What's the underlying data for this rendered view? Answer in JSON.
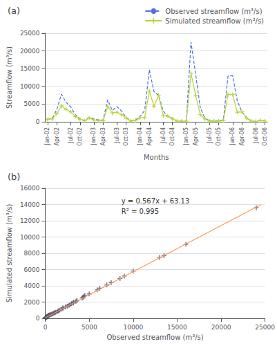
{
  "chart_data": [
    {
      "type": "line",
      "title": "(a)",
      "x_label": "Months",
      "y_label": "Streamflow (m³/s)",
      "categories": [
        "Jan-02",
        null,
        "Apr-02",
        null,
        null,
        "Jul-02",
        null,
        "Oct-02",
        null,
        null,
        "Jan-03",
        null,
        "Apr-03",
        null,
        null,
        "Jul-03",
        null,
        "Oct-03",
        null,
        null,
        "Jan-04",
        null,
        "Apr-04",
        null,
        null,
        "Jul-04",
        null,
        "Oct-04",
        null,
        null,
        "Jan-05",
        null,
        "Apr-05",
        null,
        null,
        "Jul-05",
        null,
        "Oct-05",
        null,
        null,
        "Jan-06",
        null,
        "Apr-06",
        null,
        null,
        "Jul-06",
        null,
        "Oct-06"
      ],
      "series": [
        {
          "name": "Observed streamflow (m³/s)",
          "line_style": "dashed",
          "values": [
            700,
            900,
            3500,
            7800,
            5500,
            4200,
            2000,
            800,
            400,
            1200,
            800,
            500,
            500,
            6200,
            3200,
            4300,
            3000,
            1200,
            300,
            500,
            1500,
            3200,
            14700,
            8500,
            7500,
            3000,
            1500,
            1000,
            200,
            200,
            200,
            22500,
            13500,
            4000,
            1000,
            300,
            200,
            300,
            600,
            12900,
            13000,
            5900,
            2800,
            1200,
            250,
            100,
            450,
            300
          ]
        },
        {
          "name": "Simulated streamflow (m³/s)",
          "line_style": "solid",
          "marker": "+",
          "values": [
            700,
            800,
            2300,
            4500,
            3500,
            2800,
            1500,
            700,
            300,
            1100,
            500,
            300,
            300,
            4300,
            2500,
            2700,
            2000,
            1000,
            200,
            400,
            1100,
            1200,
            8700,
            4400,
            7500,
            1700,
            1600,
            800,
            200,
            200,
            200,
            13700,
            7500,
            2000,
            800,
            200,
            200,
            200,
            400,
            7700,
            7700,
            2700,
            2800,
            1000,
            200,
            100,
            400,
            200
          ]
        }
      ],
      "ylim": [
        0,
        25000
      ],
      "yticks": [
        0,
        5000,
        10000,
        15000,
        20000,
        25000
      ],
      "grid": true,
      "legend": "upper right"
    },
    {
      "type": "scatter",
      "title": "(b)",
      "x_label": "Observed streamflow (m³/s)",
      "y_label": "Simulated streamflow (m³/s)",
      "series": [
        {
          "type": "scatter",
          "marker": "+",
          "x": [
            10,
            30,
            50,
            80,
            100,
            120,
            150,
            180,
            200,
            250,
            300,
            350,
            400,
            450,
            500,
            600,
            700,
            800,
            900,
            1000,
            1100,
            1200,
            1400,
            1500,
            1600,
            1800,
            2000,
            2000,
            2300,
            2500,
            2700,
            2800,
            3000,
            3200,
            3200,
            3500,
            3600,
            4200,
            4300,
            4400,
            4500,
            5000,
            5900,
            6200,
            7000,
            7500,
            8500,
            9000,
            10000,
            13000,
            13500,
            16000,
            24000
          ],
          "values": [
            50,
            60,
            80,
            100,
            120,
            140,
            160,
            180,
            200,
            250,
            300,
            350,
            380,
            400,
            420,
            450,
            500,
            560,
            600,
            650,
            700,
            750,
            850,
            920,
            970,
            1100,
            1200,
            1300,
            1400,
            1500,
            1600,
            1700,
            1800,
            1900,
            2000,
            2100,
            2200,
            2500,
            2600,
            2700,
            2800,
            3000,
            3500,
            3700,
            4100,
            4400,
            4900,
            5200,
            5800,
            7500,
            7700,
            9100,
            13600
          ]
        },
        {
          "type": "line",
          "line_style": "solid",
          "x": [
            0,
            24500
          ],
          "values": [
            63.13,
            13954.63
          ]
        }
      ],
      "annotations": [
        "y = 0.567x + 63.13",
        "R² = 0.995"
      ],
      "xlim": [
        0,
        25000
      ],
      "xticks": [
        0,
        5000,
        10000,
        15000,
        20000,
        25000
      ],
      "ylim": [
        0,
        16000
      ],
      "yticks": [
        0,
        2000,
        4000,
        6000,
        8000,
        10000,
        12000,
        14000,
        16000
      ],
      "grid": true
    }
  ]
}
